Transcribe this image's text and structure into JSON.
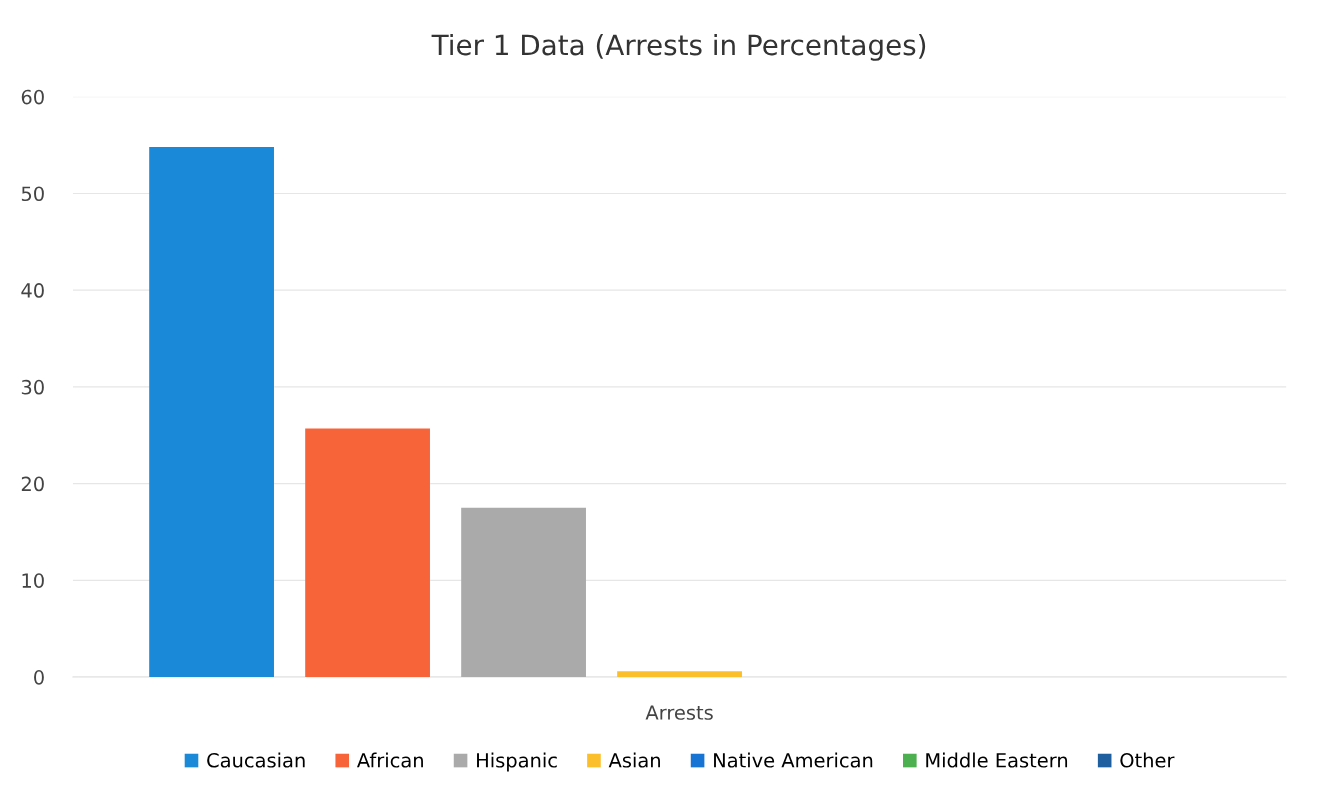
{
  "chart_data": {
    "type": "bar",
    "title": "Tier 1 Data (Arrests in Percentages)",
    "categories": [
      "Arrests"
    ],
    "series": [
      {
        "name": "Caucasian",
        "color": "#1a8ad8",
        "values": [
          54.8
        ]
      },
      {
        "name": "African",
        "color": "#f8643a",
        "values": [
          25.7
        ]
      },
      {
        "name": "Hispanic",
        "color": "#aaaaaa",
        "values": [
          17.5
        ]
      },
      {
        "name": "Asian",
        "color": "#fbbf2c",
        "values": [
          0.6
        ]
      },
      {
        "name": "Native American",
        "color": "#1773d4",
        "values": [
          0
        ]
      },
      {
        "name": "Middle Eastern",
        "color": "#4caf50",
        "values": [
          0
        ]
      },
      {
        "name": "Other",
        "color": "#1f5fa0",
        "values": [
          0
        ]
      }
    ],
    "ylim": [
      0,
      60
    ],
    "yticks": [
      0,
      10,
      20,
      30,
      40,
      50,
      60
    ],
    "grid": "y",
    "legend": "bottom"
  }
}
